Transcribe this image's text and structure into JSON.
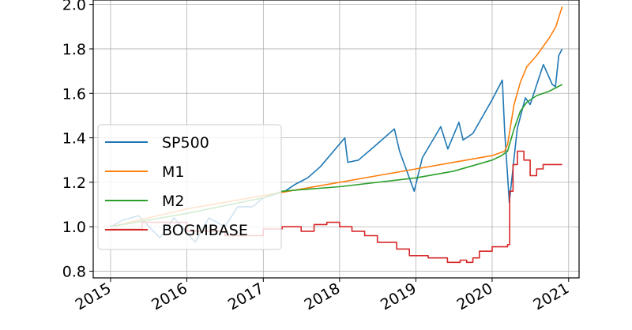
{
  "chart_data": {
    "type": "line",
    "title": "",
    "xlabel": "",
    "ylabel": "",
    "x_tick_labels": [
      "2015",
      "2016",
      "2017",
      "2018",
      "2019",
      "2020",
      "2021"
    ],
    "y_tick_labels": [
      "0.8",
      "1.0",
      "1.2",
      "1.4",
      "1.6",
      "1.8",
      "2.0"
    ],
    "y_ticks": [
      0.8,
      1.0,
      1.2,
      1.4,
      1.6,
      1.8,
      2.0
    ],
    "xlim": [
      "2014-10-10",
      "2021-02-20"
    ],
    "ylim": [
      0.77,
      2.02
    ],
    "grid": true,
    "legend_position": "lower-left",
    "series": [
      {
        "name": "SP500",
        "color": "#1f77b4",
        "points": [
          [
            "2015-01-01",
            1.0
          ],
          [
            "2015-03-01",
            1.03
          ],
          [
            "2015-05-15",
            1.05
          ],
          [
            "2015-08-25",
            0.95
          ],
          [
            "2015-11-01",
            1.04
          ],
          [
            "2016-02-10",
            0.93
          ],
          [
            "2016-04-15",
            1.04
          ],
          [
            "2016-07-01",
            1.0
          ],
          [
            "2016-09-01",
            1.09
          ],
          [
            "2016-11-10",
            1.09
          ],
          [
            "2017-01-01",
            1.13
          ],
          [
            "2017-04-15",
            1.16
          ],
          [
            "2017-06-01",
            1.19
          ],
          [
            "2017-08-01",
            1.22
          ],
          [
            "2017-10-01",
            1.27
          ],
          [
            "2018-01-26",
            1.4
          ],
          [
            "2018-02-09",
            1.29
          ],
          [
            "2018-04-01",
            1.3
          ],
          [
            "2018-06-15",
            1.36
          ],
          [
            "2018-09-20",
            1.44
          ],
          [
            "2018-10-15",
            1.34
          ],
          [
            "2018-12-24",
            1.16
          ],
          [
            "2019-02-01",
            1.31
          ],
          [
            "2019-04-30",
            1.45
          ],
          [
            "2019-06-03",
            1.35
          ],
          [
            "2019-07-26",
            1.47
          ],
          [
            "2019-08-15",
            1.39
          ],
          [
            "2019-10-01",
            1.42
          ],
          [
            "2019-12-31",
            1.57
          ],
          [
            "2020-02-19",
            1.66
          ],
          [
            "2020-03-01",
            1.43
          ],
          [
            "2020-03-23",
            1.11
          ],
          [
            "2020-04-30",
            1.44
          ],
          [
            "2020-06-08",
            1.58
          ],
          [
            "2020-07-01",
            1.55
          ],
          [
            "2020-09-02",
            1.73
          ],
          [
            "2020-10-15",
            1.64
          ],
          [
            "2020-10-30",
            1.63
          ],
          [
            "2020-11-15",
            1.77
          ],
          [
            "2020-12-01",
            1.8
          ]
        ]
      },
      {
        "name": "M1",
        "color": "#ff7f0e",
        "points": [
          [
            "2015-01-01",
            1.0
          ],
          [
            "2015-07-01",
            1.04
          ],
          [
            "2016-01-01",
            1.08
          ],
          [
            "2016-07-01",
            1.11
          ],
          [
            "2017-01-01",
            1.14
          ],
          [
            "2017-07-01",
            1.17
          ],
          [
            "2018-01-01",
            1.2
          ],
          [
            "2018-07-01",
            1.23
          ],
          [
            "2019-01-01",
            1.26
          ],
          [
            "2019-07-01",
            1.29
          ],
          [
            "2020-01-01",
            1.32
          ],
          [
            "2020-03-01",
            1.34
          ],
          [
            "2020-03-15",
            1.37
          ],
          [
            "2020-04-15",
            1.55
          ],
          [
            "2020-05-15",
            1.65
          ],
          [
            "2020-06-15",
            1.72
          ],
          [
            "2020-08-01",
            1.77
          ],
          [
            "2020-10-01",
            1.85
          ],
          [
            "2020-11-01",
            1.9
          ],
          [
            "2020-12-01",
            1.99
          ]
        ]
      },
      {
        "name": "M2",
        "color": "#2ca02c",
        "points": [
          [
            "2015-01-01",
            1.0
          ],
          [
            "2016-01-01",
            1.06
          ],
          [
            "2017-01-01",
            1.13
          ],
          [
            "2017-04-01",
            1.16
          ],
          [
            "2018-01-01",
            1.18
          ],
          [
            "2019-01-01",
            1.22
          ],
          [
            "2019-07-01",
            1.25
          ],
          [
            "2020-01-01",
            1.3
          ],
          [
            "2020-02-15",
            1.32
          ],
          [
            "2020-03-15",
            1.34
          ],
          [
            "2020-04-15",
            1.44
          ],
          [
            "2020-05-15",
            1.52
          ],
          [
            "2020-06-15",
            1.56
          ],
          [
            "2020-08-01",
            1.59
          ],
          [
            "2020-10-01",
            1.61
          ],
          [
            "2020-12-01",
            1.64
          ]
        ]
      },
      {
        "name": "BOGMBASE",
        "color": "#d62728",
        "step": true,
        "points": [
          [
            "2015-01-01",
            0.99
          ],
          [
            "2015-06-01",
            1.02
          ],
          [
            "2016-01-01",
            0.98
          ],
          [
            "2016-07-01",
            0.96
          ],
          [
            "2017-01-01",
            0.99
          ],
          [
            "2017-04-01",
            1.0
          ],
          [
            "2017-07-01",
            0.98
          ],
          [
            "2017-09-01",
            1.01
          ],
          [
            "2017-11-01",
            1.02
          ],
          [
            "2018-01-01",
            1.0
          ],
          [
            "2018-03-01",
            0.98
          ],
          [
            "2018-05-01",
            0.96
          ],
          [
            "2018-07-01",
            0.93
          ],
          [
            "2018-10-01",
            0.9
          ],
          [
            "2018-12-01",
            0.87
          ],
          [
            "2019-03-01",
            0.86
          ],
          [
            "2019-06-01",
            0.84
          ],
          [
            "2019-08-01",
            0.85
          ],
          [
            "2019-09-01",
            0.84
          ],
          [
            "2019-10-01",
            0.86
          ],
          [
            "2019-11-01",
            0.89
          ],
          [
            "2020-01-01",
            0.91
          ],
          [
            "2020-03-15",
            0.92
          ],
          [
            "2020-03-25",
            1.16
          ],
          [
            "2020-04-10",
            1.28
          ],
          [
            "2020-05-01",
            1.34
          ],
          [
            "2020-06-01",
            1.3
          ],
          [
            "2020-07-01",
            1.23
          ],
          [
            "2020-08-01",
            1.26
          ],
          [
            "2020-09-01",
            1.28
          ],
          [
            "2020-12-01",
            1.28
          ]
        ]
      }
    ]
  }
}
